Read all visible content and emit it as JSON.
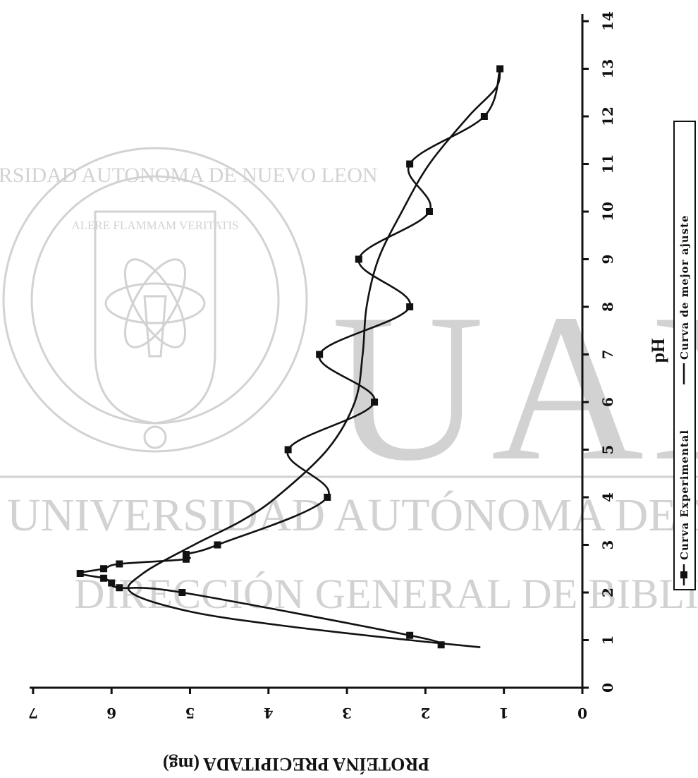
{
  "chart_data": {
    "type": "line",
    "orientation": "rotated-90-clockwise",
    "xlabel": "pH",
    "ylabel": "PROTEÍNA PRECIPITADA (mg)",
    "xlim": [
      0,
      14
    ],
    "ylim": [
      0,
      7
    ],
    "x_ticks": [
      0,
      1,
      2,
      3,
      4,
      5,
      6,
      7,
      8,
      9,
      10,
      11,
      12,
      13,
      14
    ],
    "y_ticks": [
      0,
      1,
      2,
      3,
      4,
      5,
      6,
      7
    ],
    "grid": false,
    "legend_position": "right",
    "series": [
      {
        "name": "Curva Experimental",
        "marker": "square",
        "x": [
          0.9,
          1.1,
          2.0,
          2.1,
          2.2,
          2.3,
          2.4,
          2.5,
          2.6,
          2.7,
          2.8,
          3.0,
          4.0,
          5.0,
          6.0,
          7.0,
          8.0,
          9.0,
          10.0,
          11.0,
          12.0,
          13.0
        ],
        "y": [
          1.8,
          2.2,
          5.1,
          5.9,
          6.0,
          6.1,
          6.4,
          6.1,
          5.9,
          5.05,
          5.05,
          4.65,
          3.25,
          3.75,
          2.65,
          3.35,
          2.2,
          2.85,
          1.95,
          2.2,
          1.25,
          1.05
        ]
      },
      {
        "name": "Curva de mejor ajuste",
        "marker": "none",
        "x": [
          0.85,
          1.0,
          1.3,
          1.6,
          2.0,
          2.4,
          3.0,
          3.5,
          4.0,
          5.0,
          6.0,
          7.0,
          8.0,
          9.0,
          10.0,
          11.0,
          12.0,
          12.6,
          13.0
        ],
        "y": [
          1.3,
          2.2,
          3.8,
          5.0,
          5.75,
          5.6,
          4.95,
          4.35,
          3.9,
          3.25,
          2.9,
          2.8,
          2.75,
          2.6,
          2.3,
          1.95,
          1.45,
          1.1,
          1.05
        ]
      }
    ]
  },
  "watermark": {
    "seal_ring_text": "UNIVERSIDAD AUTONOMA DE NUEVO LEON",
    "seal_motto": "ALERE FLAMMAM VERITATIS",
    "big_letters": "UAN",
    "line1": "UNIVERSIDAD AUTÓNOMA DE NUEV",
    "line2": "DIRECCIÓN GENERAL DE BIBLIOTE"
  }
}
